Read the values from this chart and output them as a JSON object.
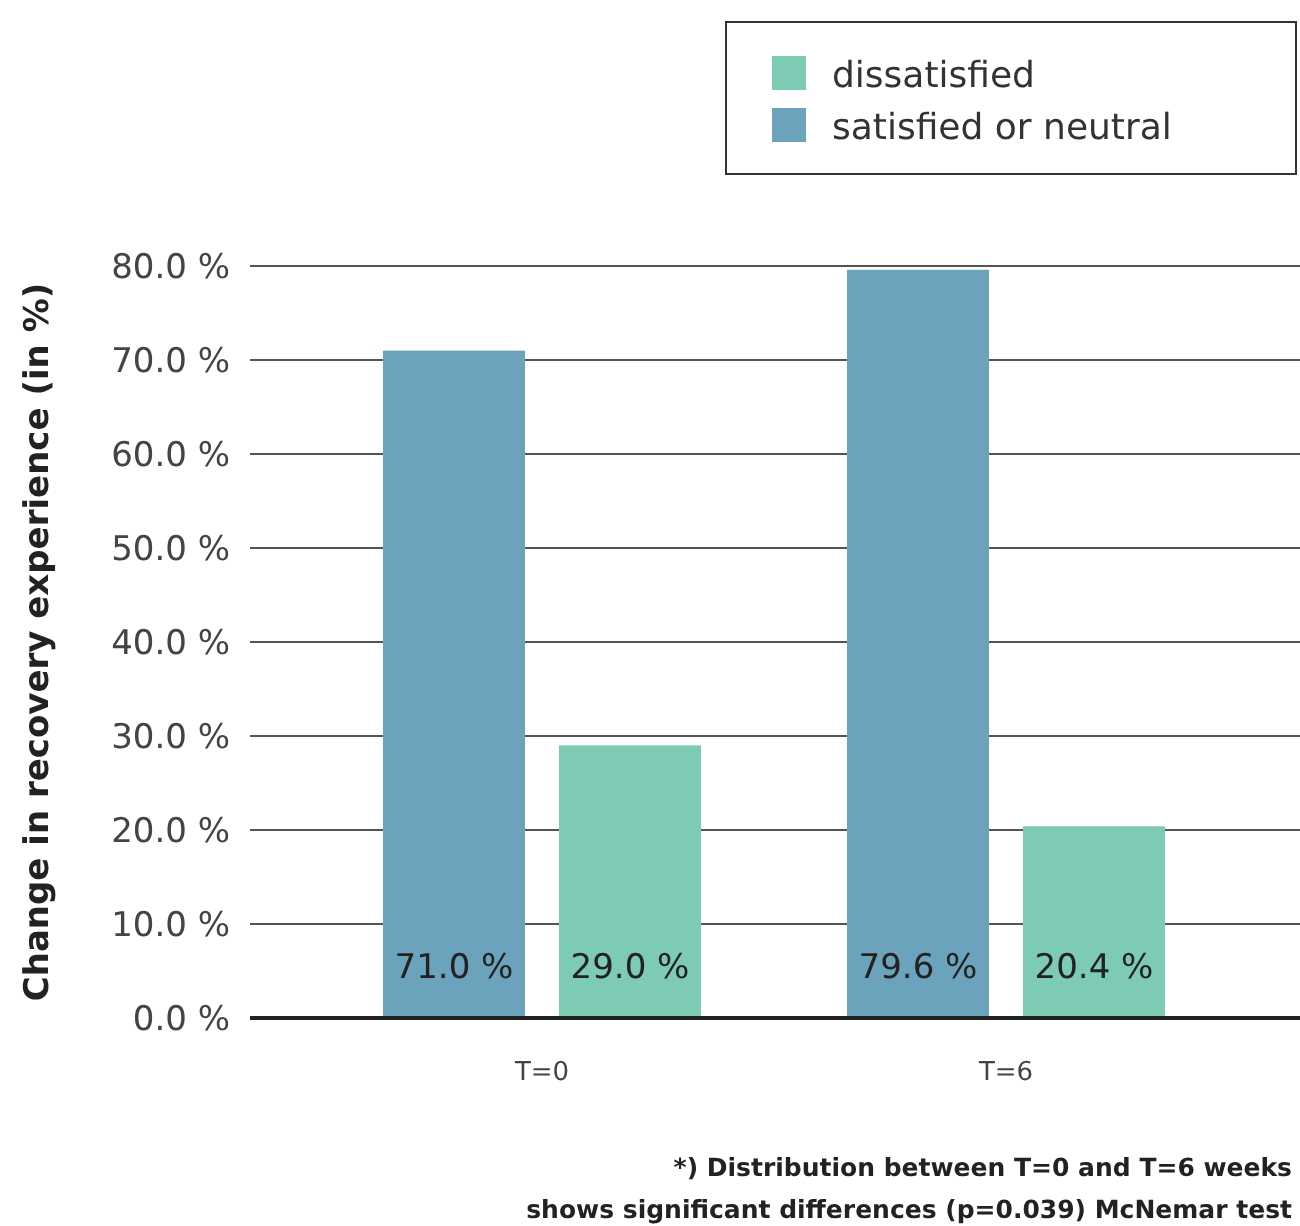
{
  "chart_data": {
    "type": "bar",
    "ylabel": "Change in recovery experience (in %)",
    "categories": [
      "T=0",
      "T=6"
    ],
    "series": [
      {
        "name": "satisfied or neutral",
        "color": "#6ca3bc",
        "values": [
          71.0,
          79.6
        ],
        "value_labels": [
          "71.0 %",
          "79.6 %"
        ]
      },
      {
        "name": "dissatisfied",
        "color": "#7ecbb5",
        "values": [
          29.0,
          20.4
        ],
        "value_labels": [
          "29.0 %",
          "20.4 %"
        ]
      }
    ],
    "ylim": [
      0,
      80
    ],
    "yticks": [
      {
        "value": 0,
        "label": "0.0 %"
      },
      {
        "value": 10,
        "label": "10.0 %"
      },
      {
        "value": 20,
        "label": "20.0 %"
      },
      {
        "value": 30,
        "label": "30.0 %"
      },
      {
        "value": 40,
        "label": "40.0 %"
      },
      {
        "value": 50,
        "label": "50.0 %"
      },
      {
        "value": 60,
        "label": "60.0 %"
      },
      {
        "value": 70,
        "label": "70.0 %"
      },
      {
        "value": 80,
        "label": "80.0 %"
      }
    ],
    "grid": "y",
    "legend": "top right",
    "annotations": [
      "*) Distribution between T=0 and T=6 weeks",
      "shows significant differences (p=0.039) McNemar test"
    ]
  }
}
